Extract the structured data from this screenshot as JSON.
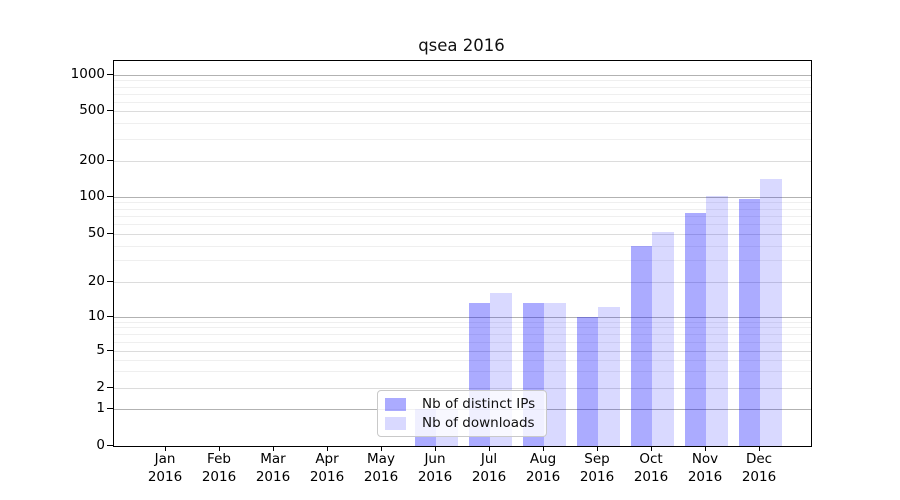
{
  "chart_data": {
    "type": "bar",
    "title": "qsea 2016",
    "categories": [
      "Jan",
      "Feb",
      "Mar",
      "Apr",
      "May",
      "Jun",
      "Jul",
      "Aug",
      "Sep",
      "Oct",
      "Nov",
      "Dec"
    ],
    "year_label": "2016",
    "series": [
      {
        "name": "Nb of distinct IPs",
        "color": "rgba(0,0,255,0.33)",
        "values": [
          0,
          0,
          0,
          0,
          0,
          1,
          13,
          13,
          10,
          40,
          74,
          95
        ]
      },
      {
        "name": "Nb of downloads",
        "color": "rgba(0,0,255,0.15)",
        "values": [
          0,
          0,
          0,
          0,
          0,
          1,
          16,
          13,
          12,
          52,
          102,
          140
        ]
      }
    ],
    "ytick_labels": [
      "1000",
      "500",
      "200",
      "100",
      "50",
      "20",
      "10",
      "5",
      "2",
      "1",
      "0"
    ],
    "ytick_values": [
      1000,
      500,
      200,
      100,
      50,
      20,
      10,
      5,
      2,
      1,
      0
    ],
    "y_scale": "symlog",
    "ylim": [
      0,
      1150
    ],
    "grid": true,
    "legend_position": "lower-center",
    "bar_dark_hex_over_white": "#aaaaf8",
    "bar_light_hex_over_white": "#d9d9f9"
  }
}
